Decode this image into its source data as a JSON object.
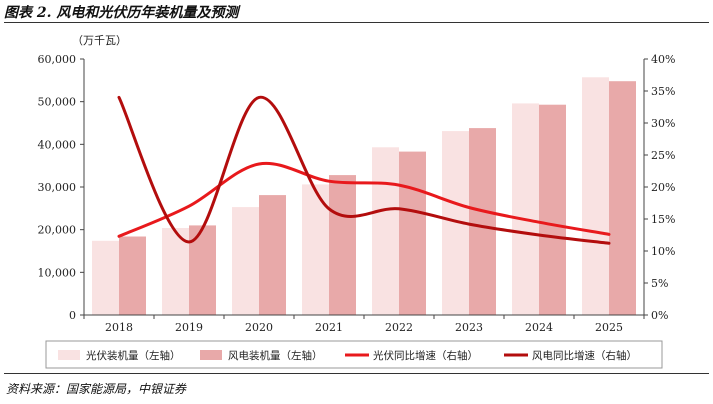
{
  "header": {
    "title": "图表 2. 风电和光伏历年装机量及预测"
  },
  "footer": {
    "source": "资料来源：国家能源局，中银证券"
  },
  "chart_data": {
    "type": "bar",
    "categories": [
      "2018",
      "2019",
      "2020",
      "2021",
      "2022",
      "2023",
      "2024",
      "2025"
    ],
    "unit_label": "（万千瓦）",
    "left_axis": {
      "ylim": [
        0,
        60000
      ],
      "ticks": [
        "0",
        "10,000",
        "20,000",
        "30,000",
        "40,000",
        "50,000",
        "60,000"
      ]
    },
    "right_axis": {
      "ylim": [
        0,
        40
      ],
      "ticks": [
        "0%",
        "5%",
        "10%",
        "15%",
        "20%",
        "25%",
        "30%",
        "35%",
        "40%"
      ]
    },
    "series": [
      {
        "name": "光伏装机量（左轴）",
        "kind": "bar",
        "axis": "left",
        "color": "#f9e2e2",
        "values": [
          17400,
          20400,
          25300,
          30600,
          39300,
          43100,
          49600,
          55700
        ]
      },
      {
        "name": "风电装机量（左轴）",
        "kind": "bar",
        "axis": "left",
        "color": "#e8a9a9",
        "values": [
          18400,
          21000,
          28100,
          32800,
          38300,
          43800,
          49300,
          54800
        ]
      },
      {
        "name": "光伏同比增速（右轴）",
        "kind": "line",
        "axis": "right",
        "color": "#e8191c",
        "values": [
          12.3,
          17.0,
          23.6,
          20.9,
          20.3,
          16.8,
          14.5,
          12.6
        ]
      },
      {
        "name": "风电同比增速（右轴）",
        "kind": "line",
        "axis": "right",
        "color": "#b30d0d",
        "values": [
          34.0,
          11.4,
          34.0,
          16.6,
          16.6,
          14.2,
          12.5,
          11.2
        ]
      }
    ],
    "legend_position": "bottom",
    "grid": false
  }
}
